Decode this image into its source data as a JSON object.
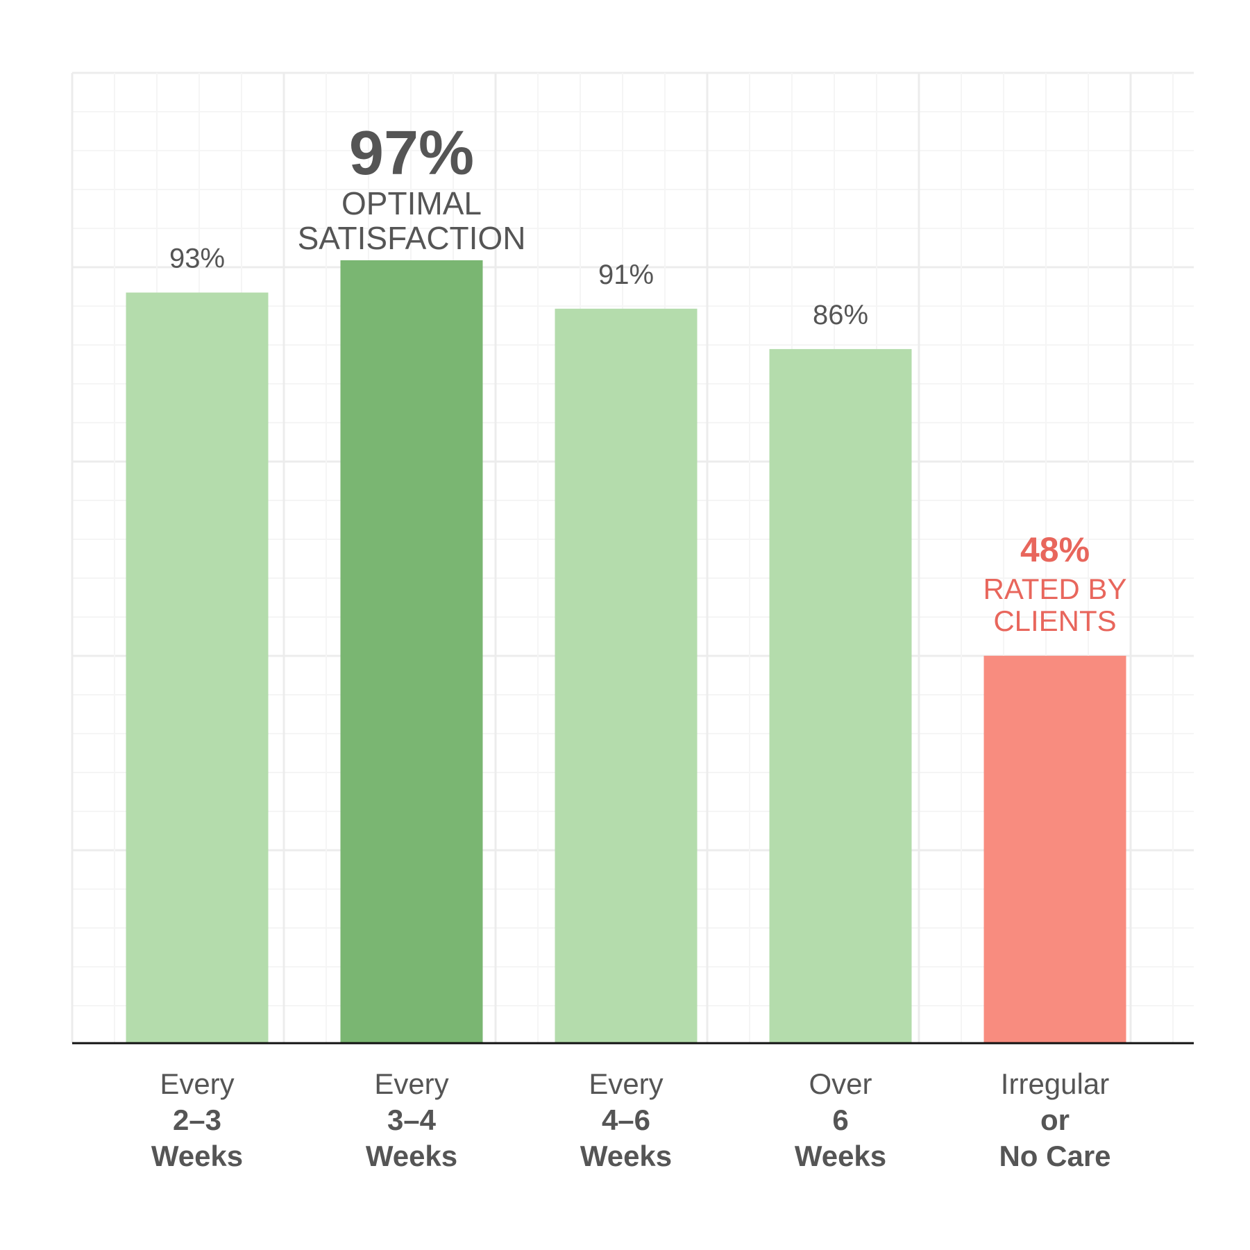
{
  "colors": {
    "bar_default": "#b4dcac",
    "bar_optimal": "#7ab672",
    "bar_low": "#f88c7f",
    "text_dark": "#555555",
    "text_accent": "#e8665c",
    "grid_major": "#ececec",
    "grid_minor": "#f5f5f5",
    "baseline": "#111111"
  },
  "chart_data": {
    "type": "bar",
    "grid": true,
    "ylim": [
      0,
      100
    ],
    "categories": [
      {
        "line1": "Every",
        "line2": "2–3",
        "line3": "Weeks"
      },
      {
        "line1": "Every",
        "line2": "3–4",
        "line3": "Weeks"
      },
      {
        "line1": "Every",
        "line2": "4–6",
        "line3": "Weeks"
      },
      {
        "line1": "Over",
        "line2": "6",
        "line3": "Weeks"
      },
      {
        "line1": "Irregular",
        "line2": "or",
        "line3": "No Care"
      }
    ],
    "values": [
      93,
      97,
      91,
      86,
      48
    ],
    "bar_styles": [
      "default",
      "optimal",
      "default",
      "default",
      "low"
    ],
    "data_labels": [
      {
        "value": "93%",
        "note": []
      },
      {
        "value": "97%",
        "note": [
          "OPTIMAL",
          "SATISFACTION"
        ]
      },
      {
        "value": "91%",
        "note": []
      },
      {
        "value": "86%",
        "note": []
      },
      {
        "value": "48%",
        "note": [
          "RATED BY",
          "CLIENTS"
        ]
      }
    ]
  }
}
